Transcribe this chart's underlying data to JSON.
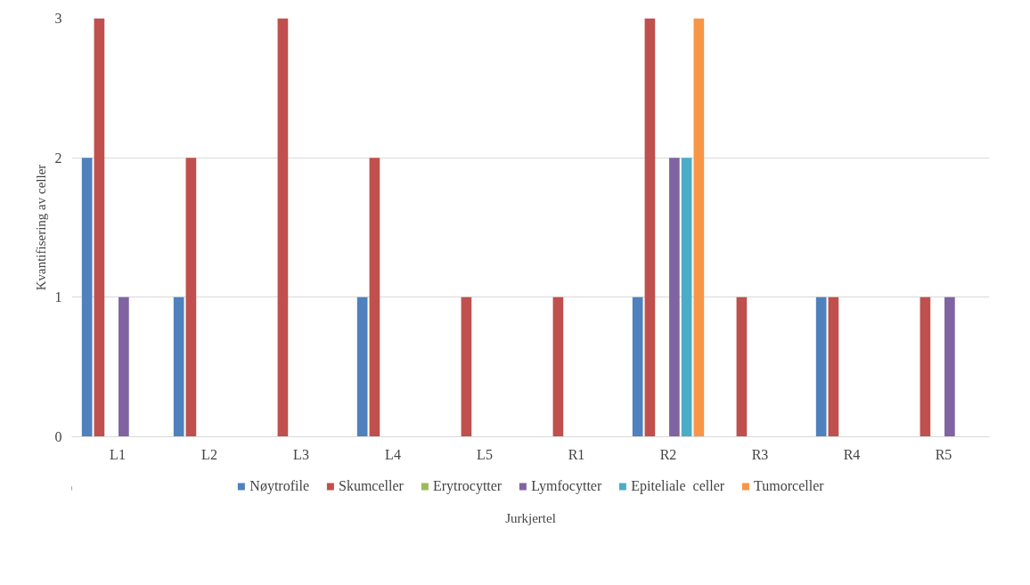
{
  "chart_data": {
    "type": "bar",
    "xlabel": "Jurkjertel",
    "ylabel": "Kvantifisering av celler",
    "categories": [
      "L1",
      "L2",
      "L3",
      "L4",
      "L5",
      "R1",
      "R2",
      "R3",
      "R4",
      "R5"
    ],
    "series": [
      {
        "name": "Nøytrofile",
        "color": "#4f81bd",
        "values": [
          2,
          1,
          0,
          1,
          0,
          0,
          1,
          0,
          1,
          0
        ]
      },
      {
        "name": "Skumceller",
        "color": "#c0504d",
        "values": [
          3,
          2,
          3,
          2,
          1,
          1,
          3,
          1,
          1,
          1
        ]
      },
      {
        "name": "Erytrocytter",
        "color": "#9bbb59",
        "values": [
          0,
          0,
          0,
          0,
          0,
          0,
          0,
          0,
          0,
          0
        ]
      },
      {
        "name": "Lymfocytter",
        "color": "#8064a2",
        "values": [
          1,
          0,
          0,
          0,
          0,
          0,
          2,
          0,
          0,
          1
        ]
      },
      {
        "name": "Epiteliale  celler",
        "color": "#4bacc6",
        "values": [
          0,
          0,
          0,
          0,
          0,
          0,
          2,
          0,
          0,
          0
        ]
      },
      {
        "name": "Tumorceller",
        "color": "#f79646",
        "values": [
          0,
          0,
          0,
          0,
          0,
          0,
          3,
          0,
          0,
          0
        ]
      }
    ],
    "ylim": [
      0,
      3
    ],
    "yticks": [
      0,
      1,
      2,
      3
    ],
    "grid": "y",
    "legend": "bottom"
  }
}
